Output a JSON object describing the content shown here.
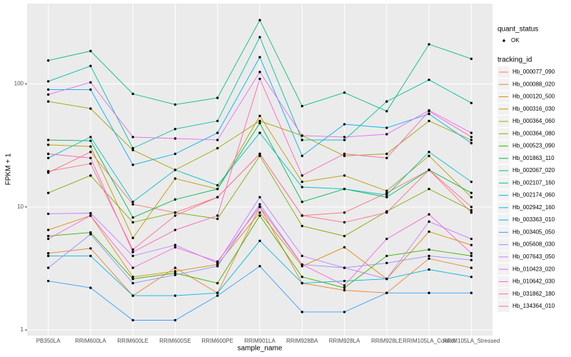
{
  "chart_data": {
    "type": "line",
    "x_label": "sample_name",
    "y_label": "FPKM + 1",
    "categories": [
      "PB350LA",
      "RRIM600LA",
      "RRIM600LE",
      "RRIM600SE",
      "RRIM600PE",
      "RRIM901LA",
      "RRIM928BA",
      "RRIM928LA",
      "RRIM928LE",
      "RRIM105LA_Control",
      "RRIM105LA_Stressed"
    ],
    "log_y": true,
    "ylim": [
      0.9,
      450
    ],
    "yticks": [
      1,
      10,
      100
    ],
    "grid": true,
    "point_color": "#000000",
    "shape_legend": {
      "title": "quant_status",
      "labels": [
        "OK"
      ]
    },
    "legend_title": "tracking_id",
    "series": [
      {
        "name": "Hb_000077_090",
        "color": "#F8766D",
        "values": [
          19,
          28,
          10.5,
          9,
          12,
          27,
          8.5,
          9,
          13,
          20,
          9
        ]
      },
      {
        "name": "Hb_000088_020",
        "color": "#EA8331",
        "values": [
          4.2,
          4.6,
          1.9,
          3.2,
          2.0,
          10,
          2.4,
          2.1,
          2.0,
          3.8,
          3.2
        ]
      },
      {
        "name": "Hb_000120_500",
        "color": "#D89000",
        "values": [
          6.5,
          8.5,
          2.7,
          3.0,
          3.4,
          9,
          3.3,
          4.7,
          2.6,
          6.3,
          4.9
        ]
      },
      {
        "name": "Hb_000316_030",
        "color": "#C09B00",
        "values": [
          32,
          31,
          5.6,
          17,
          14,
          55,
          16,
          18,
          13.5,
          26,
          12
        ]
      },
      {
        "name": "Hb_000364_060",
        "color": "#A3A500",
        "values": [
          72,
          63,
          29,
          20,
          30,
          50,
          38,
          26,
          27,
          50,
          35
        ]
      },
      {
        "name": "Hb_000364_080",
        "color": "#7CAE00",
        "values": [
          13,
          18,
          7.5,
          9,
          8,
          26,
          7,
          5.8,
          9.2,
          14,
          9.4
        ]
      },
      {
        "name": "Hb_000523_090",
        "color": "#39B600",
        "values": [
          5.8,
          6.2,
          2.6,
          2.9,
          2.4,
          8.5,
          2.7,
          2.2,
          4.0,
          4.5,
          4.0
        ]
      },
      {
        "name": "Hb_001863_110",
        "color": "#00BB4E",
        "values": [
          35,
          34.5,
          8.2,
          11.5,
          14,
          48,
          11,
          14,
          12,
          20,
          13
        ]
      },
      {
        "name": "Hb_002067_020",
        "color": "#00BF7D",
        "values": [
          155,
          185,
          83,
          68,
          77,
          330,
          66,
          85,
          60,
          210,
          160
        ]
      },
      {
        "name": "Hb_002107_160",
        "color": "#00C1A3",
        "values": [
          105,
          140,
          30,
          43,
          50,
          240,
          35,
          35,
          72,
          108,
          70
        ]
      },
      {
        "name": "Hb_002174_060",
        "color": "#00BFC4",
        "values": [
          25,
          37,
          11,
          20,
          15,
          40,
          14.5,
          14,
          12.5,
          28,
          16
        ]
      },
      {
        "name": "Hb_002942_160",
        "color": "#00BAE0",
        "values": [
          4,
          4,
          1.9,
          1.9,
          2.0,
          5.3,
          2.4,
          2.5,
          2.6,
          3.1,
          2.7
        ]
      },
      {
        "name": "Hb_003363_010",
        "color": "#00B0F6",
        "values": [
          90,
          90,
          22,
          27,
          40,
          165,
          26,
          47,
          44,
          57,
          33
        ]
      },
      {
        "name": "Hb_003405_050",
        "color": "#35A2FF",
        "values": [
          2.5,
          2.2,
          1.2,
          1.2,
          1.9,
          3.3,
          1.4,
          1.4,
          2.0,
          2.0,
          2.0
        ]
      },
      {
        "name": "Hb_005608_030",
        "color": "#9590FF",
        "values": [
          3.2,
          6.0,
          2.4,
          2.8,
          3.3,
          10.5,
          3.4,
          3.2,
          3.5,
          4.0,
          3.7
        ]
      },
      {
        "name": "Hb_007643_050",
        "color": "#C77CFF",
        "values": [
          8.8,
          8.9,
          4.0,
          4.9,
          3.5,
          12,
          4.0,
          3.2,
          2.6,
          7.6,
          5.5
        ]
      },
      {
        "name": "Hb_010423_020",
        "color": "#E76BF3",
        "values": [
          82,
          103,
          37,
          36,
          35,
          125,
          38,
          37,
          39,
          61,
          40
        ]
      },
      {
        "name": "Hb_010642_030",
        "color": "#FA62DB",
        "values": [
          5.5,
          8.5,
          3.2,
          4.7,
          3.6,
          10,
          3.4,
          2.3,
          5.5,
          8.7,
          4.2
        ]
      },
      {
        "name": "Hb_031862_180",
        "color": "#FF62BC",
        "values": [
          27,
          25,
          4.3,
          6.5,
          8.5,
          110,
          18,
          27,
          25,
          60,
          37
        ]
      },
      {
        "name": "Hb_134364_010",
        "color": "#FF6C90",
        "values": [
          19.5,
          22.5,
          4.5,
          8.5,
          12,
          27,
          8.5,
          7.5,
          9,
          20,
          10
        ]
      }
    ]
  }
}
